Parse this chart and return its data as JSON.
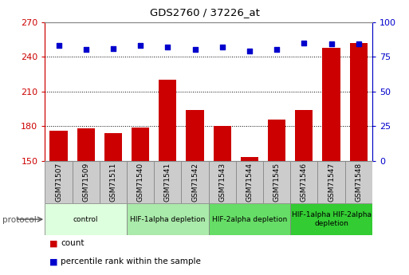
{
  "title": "GDS2760 / 37226_at",
  "samples": [
    "GSM71507",
    "GSM71509",
    "GSM71511",
    "GSM71540",
    "GSM71541",
    "GSM71542",
    "GSM71543",
    "GSM71544",
    "GSM71545",
    "GSM71546",
    "GSM71547",
    "GSM71548"
  ],
  "counts": [
    176,
    178,
    174,
    179,
    220,
    194,
    180,
    153,
    186,
    194,
    248,
    252
  ],
  "percentile_ranks": [
    83,
    80,
    81,
    83,
    82,
    80,
    82,
    79,
    80,
    85,
    84,
    84
  ],
  "ylim_left": [
    150,
    270
  ],
  "ylim_right": [
    0,
    100
  ],
  "yticks_left": [
    150,
    180,
    210,
    240,
    270
  ],
  "yticks_right": [
    0,
    25,
    50,
    75,
    100
  ],
  "bar_color": "#cc0000",
  "dot_color": "#0000cc",
  "bg_color": "#ffffff",
  "sample_box_color": "#cccccc",
  "protocol_groups": [
    {
      "label": "control",
      "start": 0,
      "end": 2,
      "color": "#ddffdd"
    },
    {
      "label": "HIF-1alpha depletion",
      "start": 3,
      "end": 5,
      "color": "#aaeaaa"
    },
    {
      "label": "HIF-2alpha depletion",
      "start": 6,
      "end": 8,
      "color": "#66dd66"
    },
    {
      "label": "HIF-1alpha HIF-2alpha\ndepletion",
      "start": 9,
      "end": 11,
      "color": "#33cc33"
    }
  ],
  "grid_yticks": [
    180,
    210,
    240
  ],
  "legend_items": [
    {
      "color": "#cc0000",
      "label": "count"
    },
    {
      "color": "#0000cc",
      "label": "percentile rank within the sample"
    }
  ]
}
